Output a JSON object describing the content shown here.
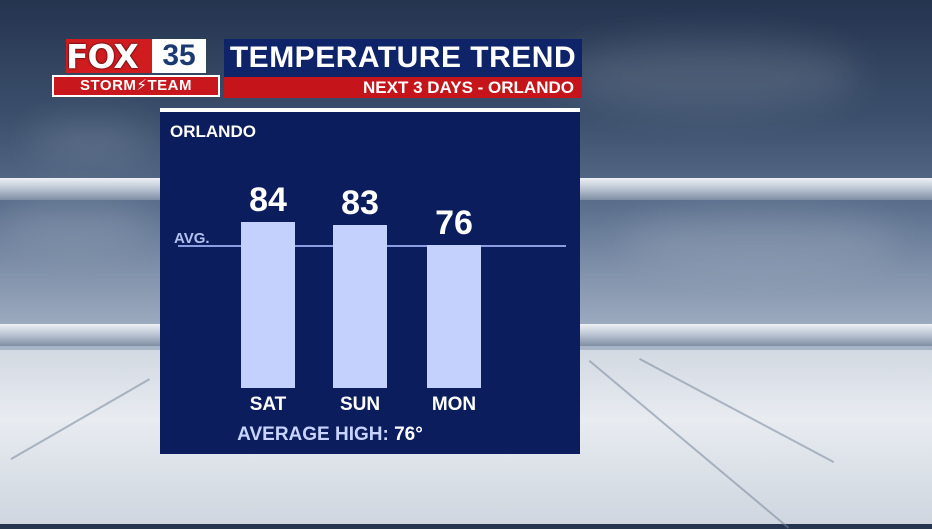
{
  "logo": {
    "brand": "FOX",
    "channel": "35",
    "team": "STORM⚡TEAM"
  },
  "header": {
    "title": "TEMPERATURE TREND",
    "subtitle": "NEXT 3 DAYS - ORLANDO"
  },
  "panel": {
    "location": "ORLANDO",
    "avg_label": "AVG.",
    "footer_label": "AVERAGE HIGH:",
    "footer_value": "76°"
  },
  "colors": {
    "panel": "#0c1d5e",
    "bar": "#c3d1fc",
    "title_bar": "#0f2369",
    "subtitle_bar": "#c5151a"
  },
  "chart_data": {
    "type": "bar",
    "categories": [
      "SAT",
      "SUN",
      "MON"
    ],
    "values": [
      84,
      83,
      76
    ],
    "average": 76,
    "title": "TEMPERATURE TREND",
    "subtitle": "NEXT 3 DAYS - ORLANDO",
    "xlabel": "",
    "ylabel": "",
    "grid": false
  }
}
